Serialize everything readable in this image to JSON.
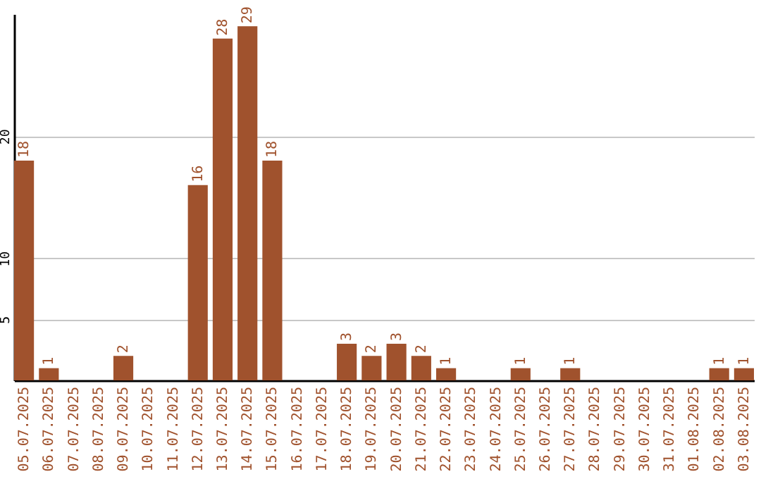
{
  "chart_data": {
    "type": "bar",
    "categories": [
      "05.07.2025",
      "06.07.2025",
      "07.07.2025",
      "08.07.2025",
      "09.07.2025",
      "10.07.2025",
      "11.07.2025",
      "12.07.2025",
      "13.07.2025",
      "14.07.2025",
      "15.07.2025",
      "16.07.2025",
      "17.07.2025",
      "18.07.2025",
      "19.07.2025",
      "20.07.2025",
      "21.07.2025",
      "22.07.2025",
      "23.07.2025",
      "24.07.2025",
      "25.07.2025",
      "26.07.2025",
      "27.07.2025",
      "28.07.2025",
      "29.07.2025",
      "30.07.2025",
      "31.07.2025",
      "01.08.2025",
      "02.08.2025",
      "03.08.2025"
    ],
    "values": [
      18,
      1,
      0,
      0,
      2,
      0,
      0,
      16,
      28,
      29,
      18,
      0,
      0,
      3,
      2,
      3,
      2,
      1,
      0,
      0,
      1,
      0,
      1,
      0,
      0,
      0,
      0,
      0,
      1,
      1
    ],
    "value_labels": [
      "18",
      "1",
      null,
      null,
      "2",
      null,
      null,
      "16",
      "28",
      "29",
      "18",
      null,
      null,
      "3",
      "2",
      "3",
      "2",
      "1",
      null,
      null,
      "1",
      null,
      "1",
      null,
      null,
      null,
      null,
      null,
      "1",
      "1"
    ],
    "color": "#a0522d",
    "ylim": [
      0,
      30
    ],
    "yticks": [
      5,
      10,
      20
    ],
    "grid": "y"
  }
}
